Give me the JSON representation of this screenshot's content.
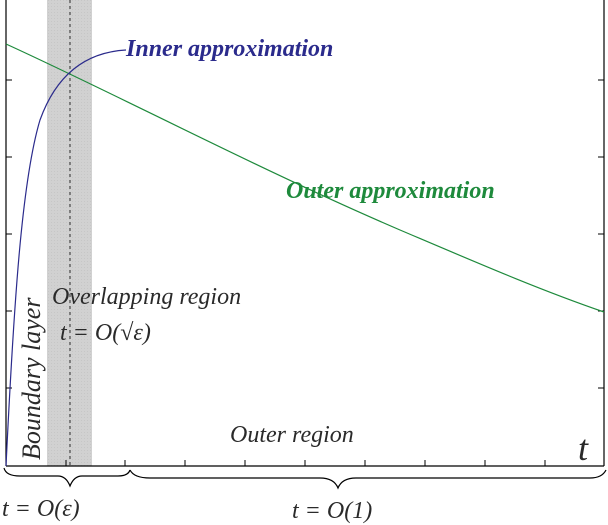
{
  "labels": {
    "inner_approximation": "Inner approximation",
    "outer_approximation": "Outer approximation",
    "overlapping_region": "Overlapping region",
    "overlap_scale": "t = O(√ε)",
    "boundary_layer": "Boundary layer",
    "outer_region": "Outer region",
    "axis_variable": "t",
    "inner_scale": "t = O(ε)",
    "outer_scale": "t = O(1)"
  },
  "colors": {
    "inner_curve": "#2b2b8c",
    "outer_curve": "#1e8a3c",
    "overlap_band": "#d6d6d6",
    "axes": "#000000",
    "text": "#2a2a2a"
  }
}
